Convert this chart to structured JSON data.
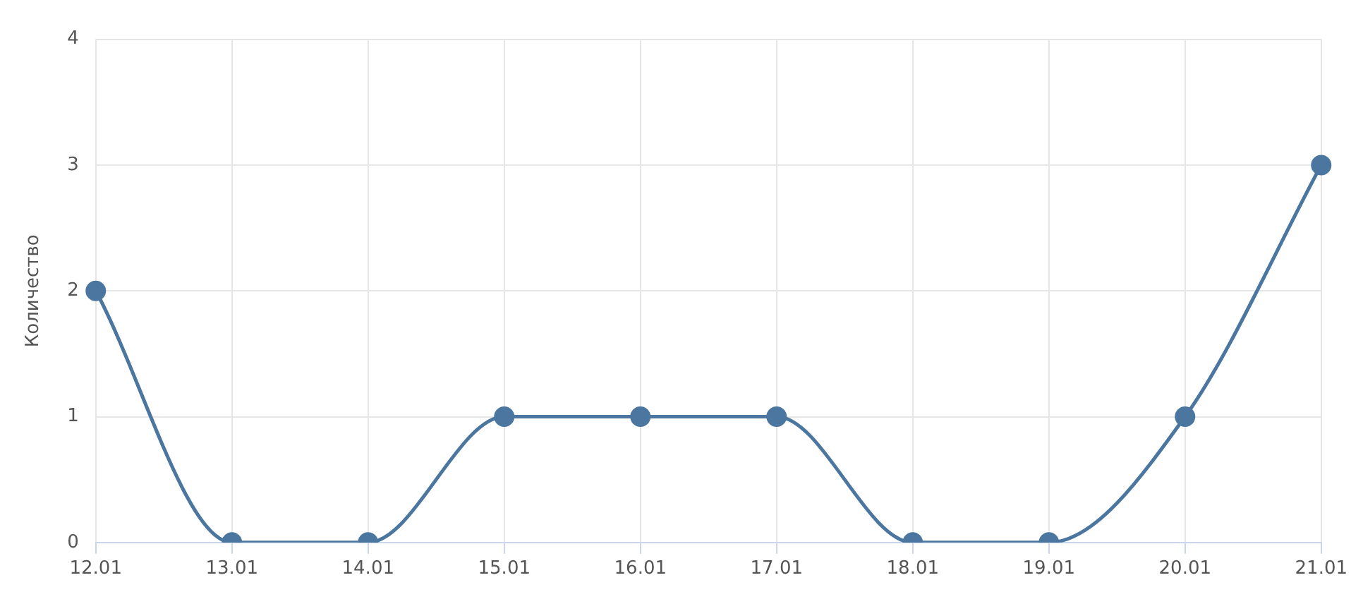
{
  "chart_data": {
    "type": "line",
    "ylabel": "Количество",
    "categories": [
      "12.01",
      "13.01",
      "14.01",
      "15.01",
      "16.01",
      "17.01",
      "18.01",
      "19.01",
      "20.01",
      "21.01"
    ],
    "series": [
      {
        "color": "#4a76a0",
        "values": [
          2,
          0,
          0,
          1,
          1,
          1,
          0,
          0,
          1,
          3
        ]
      }
    ],
    "ylim": [
      0,
      4
    ],
    "yticks": [
      0,
      1,
      2,
      3,
      4
    ],
    "grid": true,
    "marker": "circle",
    "line_style": "solid",
    "legend": false
  }
}
